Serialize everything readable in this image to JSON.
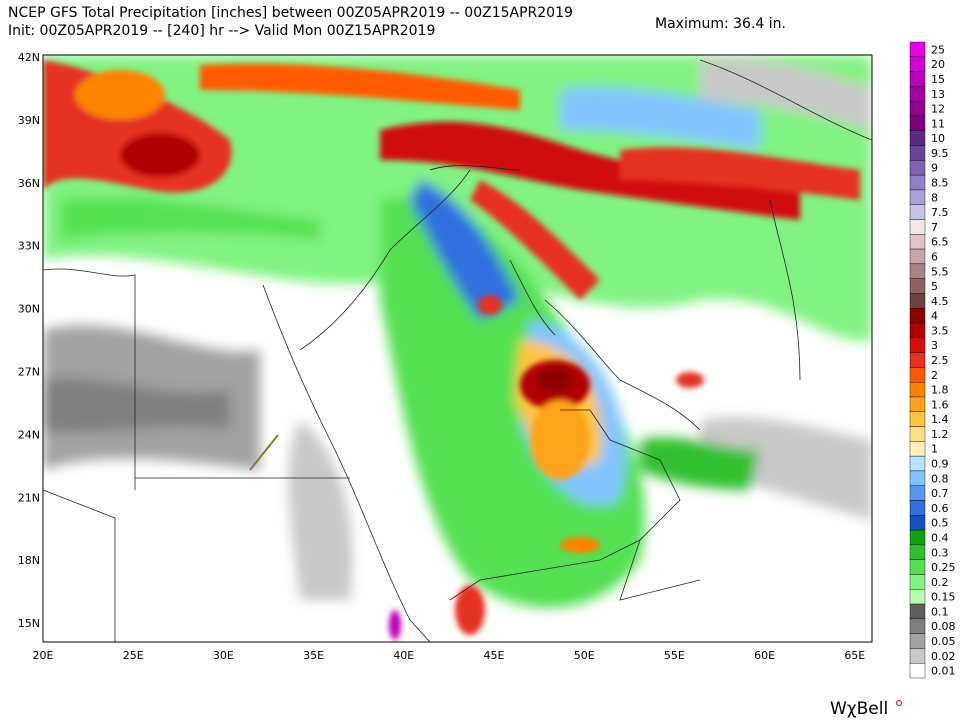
{
  "header": {
    "title": "NCEP GFS Total Precipitation [inches] between 00Z05APR2019 -- 00Z15APR2019",
    "subtitle": "Init: 00Z05APR2019 -- [240] hr --> Valid Mon 00Z15APR2019",
    "maximum": "Maximum: 36.4 in."
  },
  "map": {
    "lat_labels": [
      "42N",
      "39N",
      "36N",
      "33N",
      "30N",
      "27N",
      "24N",
      "21N",
      "18N",
      "15N"
    ],
    "lon_labels": [
      "20E",
      "25E",
      "30E",
      "35E",
      "40E",
      "45E",
      "50E",
      "55E",
      "60E",
      "65E"
    ]
  },
  "colorbar": [
    {
      "label": "25",
      "color": "#e600e6"
    },
    {
      "label": "20",
      "color": "#d200d2"
    },
    {
      "label": "15",
      "color": "#bb00bb"
    },
    {
      "label": "13",
      "color": "#a400a4"
    },
    {
      "label": "12",
      "color": "#900090"
    },
    {
      "label": "11",
      "color": "#7c007c"
    },
    {
      "label": "10",
      "color": "#5e2a80"
    },
    {
      "label": "9.5",
      "color": "#6a4498"
    },
    {
      "label": "9",
      "color": "#7e62b0"
    },
    {
      "label": "8.5",
      "color": "#9480c4"
    },
    {
      "label": "8",
      "color": "#aaa2d6"
    },
    {
      "label": "7.5",
      "color": "#c6c2e6"
    },
    {
      "label": "7",
      "color": "#f2e6e6"
    },
    {
      "label": "6.5",
      "color": "#e0c4c4"
    },
    {
      "label": "6",
      "color": "#c8a4a4"
    },
    {
      "label": "5.5",
      "color": "#aa8484"
    },
    {
      "label": "5",
      "color": "#8c6262"
    },
    {
      "label": "4.5",
      "color": "#6e4242"
    },
    {
      "label": "4",
      "color": "#8c0000"
    },
    {
      "label": "3.5",
      "color": "#b00000"
    },
    {
      "label": "3",
      "color": "#d01010"
    },
    {
      "label": "2.5",
      "color": "#e63020"
    },
    {
      "label": "2",
      "color": "#ff5a00"
    },
    {
      "label": "1.8",
      "color": "#ff8200"
    },
    {
      "label": "1.6",
      "color": "#ffa41e"
    },
    {
      "label": "1.4",
      "color": "#ffc440"
    },
    {
      "label": "1.2",
      "color": "#ffe080"
    },
    {
      "label": "1",
      "color": "#fff2b4"
    },
    {
      "label": "0.9",
      "color": "#b4e4ff"
    },
    {
      "label": "0.8",
      "color": "#82c4ff"
    },
    {
      "label": "0.7",
      "color": "#5a96f0"
    },
    {
      "label": "0.6",
      "color": "#3270e0"
    },
    {
      "label": "0.5",
      "color": "#1450c0"
    },
    {
      "label": "0.4",
      "color": "#10a010"
    },
    {
      "label": "0.3",
      "color": "#2ec02e"
    },
    {
      "label": "0.25",
      "color": "#52e052"
    },
    {
      "label": "0.2",
      "color": "#82f282"
    },
    {
      "label": "0.15",
      "color": "#b4ffb4"
    },
    {
      "label": "0.1",
      "color": "#5e5e5e"
    },
    {
      "label": "0.08",
      "color": "#808080"
    },
    {
      "label": "0.05",
      "color": "#a2a2a2"
    },
    {
      "label": "0.02",
      "color": "#c8c8c8"
    },
    {
      "label": "0.01",
      "color": "#ffffff"
    }
  ],
  "logo": "WχBell"
}
